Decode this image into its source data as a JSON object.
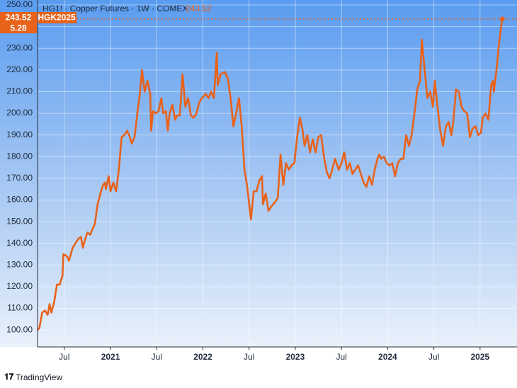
{
  "chart_data": {
    "type": "line",
    "title": "HG1! · Copper Futures · 1W · COMEX",
    "contract": "HGK2025",
    "change": 5.28,
    "brand": "TradingView",
    "color": "#e8621a",
    "grid": true,
    "x": [
      2020.21,
      2020.23,
      2020.26,
      2020.29,
      2020.32,
      2020.34,
      2020.36,
      2020.39,
      2020.42,
      2020.45,
      2020.48,
      2020.49,
      2020.53,
      2020.55,
      2020.59,
      2020.62,
      2020.65,
      2020.68,
      2020.7,
      2020.72,
      2020.75,
      2020.78,
      2020.81,
      2020.83,
      2020.86,
      2020.89,
      2020.92,
      2020.94,
      2020.95,
      2020.98,
      2021.0,
      2021.03,
      2021.06,
      2021.09,
      2021.12,
      2021.15,
      2021.18,
      2021.21,
      2021.23,
      2021.26,
      2021.29,
      2021.32,
      2021.34,
      2021.37,
      2021.4,
      2021.43,
      2021.44,
      2021.46,
      2021.49,
      2021.52,
      2021.55,
      2021.57,
      2021.6,
      2021.62,
      2021.64,
      2021.67,
      2021.7,
      2021.72,
      2021.75,
      2021.78,
      2021.81,
      2021.84,
      2021.87,
      2021.9,
      2021.93,
      2021.96,
      2021.99,
      2022.03,
      2022.06,
      2022.09,
      2022.12,
      2022.15,
      2022.16,
      2022.19,
      2022.24,
      2022.27,
      2022.3,
      2022.33,
      2022.36,
      2022.39,
      2022.42,
      2022.45,
      2022.48,
      2022.52,
      2022.55,
      2022.58,
      2022.61,
      2022.64,
      2022.65,
      2022.68,
      2022.71,
      2022.74,
      2022.78,
      2022.81,
      2022.84,
      2022.87,
      2022.9,
      2022.93,
      2022.96,
      2022.99,
      2023.02,
      2023.05,
      2023.08,
      2023.1,
      2023.13,
      2023.16,
      2023.19,
      2023.22,
      2023.25,
      2023.28,
      2023.31,
      2023.34,
      2023.37,
      2023.4,
      2023.43,
      2023.47,
      2023.5,
      2023.53,
      2023.56,
      2023.59,
      2023.62,
      2023.65,
      2023.68,
      2023.71,
      2023.74,
      2023.77,
      2023.8,
      2023.83,
      2023.86,
      2023.89,
      2023.91,
      2023.93,
      2023.96,
      2023.99,
      2024.02,
      2024.05,
      2024.08,
      2024.11,
      2024.14,
      2024.17,
      2024.2,
      2024.23,
      2024.26,
      2024.29,
      2024.32,
      2024.35,
      2024.37,
      2024.4,
      2024.43,
      2024.46,
      2024.49,
      2024.51,
      2024.54,
      2024.57,
      2024.6,
      2024.63,
      2024.66,
      2024.69,
      2024.71,
      2024.74,
      2024.77,
      2024.8,
      2024.83,
      2024.86,
      2024.89,
      2024.92,
      2024.95,
      2024.98,
      2025.01,
      2025.03,
      2025.06,
      2025.09,
      2025.12,
      2025.14,
      2025.15,
      2025.18,
      2025.21,
      2025.24
    ],
    "values": [
      100,
      101,
      108,
      109,
      107,
      112,
      108,
      113,
      121,
      121,
      125,
      135,
      134,
      132,
      138,
      140,
      142,
      143,
      138,
      141,
      145,
      144,
      147,
      149,
      158,
      163,
      167,
      168,
      165,
      171,
      164,
      168,
      164,
      174,
      189,
      190,
      192,
      189,
      186,
      189,
      200,
      210,
      220,
      210,
      215,
      209,
      192,
      201,
      200,
      201,
      207,
      200,
      201,
      192,
      200,
      204,
      197,
      199,
      199,
      218,
      203,
      207,
      199,
      198,
      200,
      205,
      207,
      209,
      207,
      210,
      207,
      228,
      213,
      218,
      219,
      216,
      207,
      194,
      200,
      207,
      194,
      174,
      166,
      151,
      164,
      164,
      169,
      171,
      158,
      163,
      155,
      157,
      159,
      161,
      181,
      167,
      177,
      174,
      176,
      177,
      189,
      198,
      192,
      185,
      190,
      182,
      188,
      182,
      189,
      190,
      180,
      173,
      170,
      174,
      179,
      174,
      177,
      182,
      174,
      177,
      172,
      174,
      176,
      172,
      168,
      166,
      171,
      167,
      174,
      179,
      181,
      179,
      180,
      177,
      176,
      177,
      171,
      177,
      179,
      179,
      190,
      185,
      190,
      200,
      211,
      215,
      234,
      220,
      207,
      210,
      203,
      215,
      203,
      192,
      185,
      194,
      196,
      190,
      196,
      211,
      210,
      203,
      201,
      200,
      189,
      193,
      194,
      190,
      191,
      198,
      200,
      197,
      213,
      215,
      210,
      221,
      234,
      243.52
    ],
    "xlim": [
      2020.21,
      2025.4
    ],
    "xticks": [
      {
        "value": 2020.5,
        "label": "Jul"
      },
      2021,
      {
        "value": 2021.5,
        "label": "Jul"
      },
      2022,
      {
        "value": 2022.5,
        "label": "Jul"
      },
      2023,
      {
        "value": 2023.5,
        "label": "Jul"
      },
      2024,
      {
        "value": 2024.5,
        "label": "Jul"
      },
      2025
    ],
    "ylim": [
      92.2,
      252.3
    ],
    "yticks": [
      {
        "value": 100,
        "label": "100.00"
      },
      {
        "value": 110,
        "label": "110.00"
      },
      {
        "value": 120,
        "label": "120.00"
      },
      {
        "value": 130,
        "label": "130.00"
      },
      {
        "value": 140,
        "label": "140.00"
      },
      {
        "value": 150,
        "label": "150.00"
      },
      {
        "value": 160,
        "label": "160.00"
      },
      {
        "value": 170,
        "label": "170.00"
      },
      {
        "value": 180,
        "label": "180.00"
      },
      {
        "value": 190,
        "label": "190.00"
      },
      {
        "value": 200,
        "label": "200.00"
      },
      {
        "value": 210,
        "label": "210.00"
      },
      {
        "value": 220,
        "label": "220.00"
      },
      {
        "value": 230,
        "label": "230.00"
      },
      {
        "value": 240,
        "label": "240.00"
      },
      {
        "value": 250,
        "label": "250.00"
      }
    ]
  }
}
